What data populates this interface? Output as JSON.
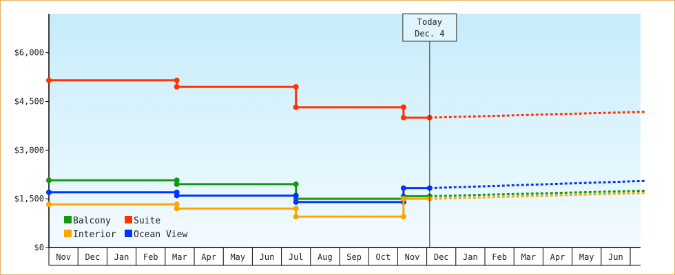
{
  "chart_data": {
    "type": "line",
    "step": true,
    "ylim": [
      0,
      7200
    ],
    "y_ticks": [
      {
        "value": 0,
        "label": "$0"
      },
      {
        "value": 1500,
        "label": "$1,500"
      },
      {
        "value": 3000,
        "label": "$3,000"
      },
      {
        "value": 4500,
        "label": "$4,500"
      },
      {
        "value": 6000,
        "label": "$6,000"
      }
    ],
    "months": [
      "Nov",
      "Dec",
      "Jan",
      "Feb",
      "Mar",
      "Apr",
      "May",
      "Jun",
      "Jul",
      "Aug",
      "Sep",
      "Oct",
      "Nov",
      "Dec",
      "Jan",
      "Feb",
      "Mar",
      "Apr",
      "May",
      "Jun"
    ],
    "x_range": [
      0,
      20.5
    ],
    "today": {
      "x": 13.1,
      "line1": "Today",
      "line2": "Dec. 4"
    },
    "legend": {
      "placement": "bottom-left"
    },
    "series": [
      {
        "name": "Suite",
        "color": "#ff3300",
        "actual": [
          [
            0,
            5150
          ],
          [
            4.4,
            5150
          ],
          [
            4.4,
            4950
          ],
          [
            8.5,
            4950
          ],
          [
            8.5,
            4320
          ],
          [
            12.2,
            4320
          ],
          [
            12.2,
            4000
          ],
          [
            13.1,
            4000
          ]
        ],
        "forecast": [
          [
            13.1,
            4000
          ],
          [
            20.5,
            4180
          ]
        ]
      },
      {
        "name": "Balcony",
        "color": "#119911",
        "actual": [
          [
            0,
            2070
          ],
          [
            4.4,
            2070
          ],
          [
            4.4,
            1950
          ],
          [
            8.5,
            1950
          ],
          [
            8.5,
            1500
          ],
          [
            12.2,
            1500
          ],
          [
            12.2,
            1580
          ],
          [
            13.1,
            1580
          ]
        ],
        "forecast": [
          [
            13.1,
            1580
          ],
          [
            20.5,
            1750
          ]
        ]
      },
      {
        "name": "Ocean View",
        "color": "#0033ff",
        "actual": [
          [
            0,
            1700
          ],
          [
            4.4,
            1700
          ],
          [
            4.4,
            1600
          ],
          [
            8.5,
            1600
          ],
          [
            8.5,
            1400
          ],
          [
            12.2,
            1400
          ],
          [
            12.2,
            1830
          ],
          [
            13.1,
            1830
          ]
        ],
        "forecast": [
          [
            13.1,
            1830
          ],
          [
            20.5,
            2050
          ]
        ]
      },
      {
        "name": "Interior",
        "color": "#ffa500",
        "actual": [
          [
            0,
            1330
          ],
          [
            4.4,
            1330
          ],
          [
            4.4,
            1200
          ],
          [
            8.5,
            1200
          ],
          [
            8.5,
            950
          ],
          [
            12.2,
            950
          ],
          [
            12.2,
            1500
          ],
          [
            13.1,
            1500
          ]
        ],
        "forecast": [
          [
            13.1,
            1500
          ],
          [
            20.5,
            1680
          ]
        ]
      }
    ]
  },
  "legend_items": [
    {
      "name": "Balcony",
      "color": "#119911"
    },
    {
      "name": "Suite",
      "color": "#ff3300"
    },
    {
      "name": "Interior",
      "color": "#ffa500"
    },
    {
      "name": "Ocean View",
      "color": "#0033ff"
    }
  ]
}
